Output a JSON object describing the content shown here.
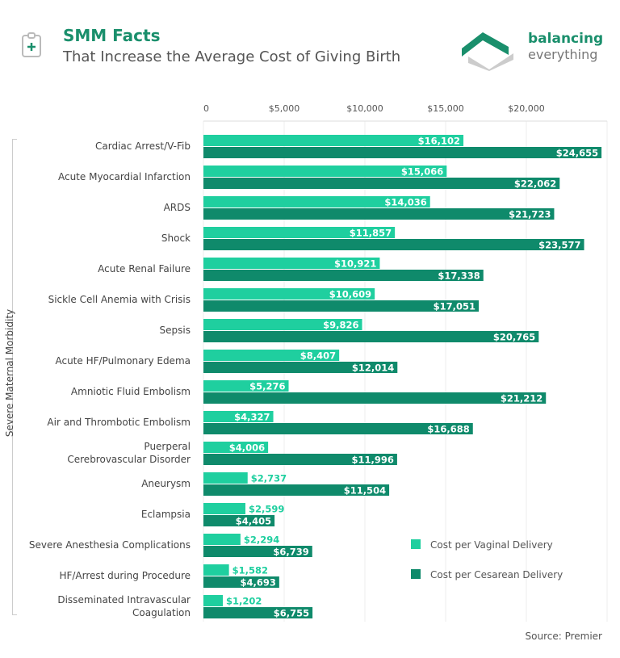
{
  "header": {
    "title": "SMM Facts",
    "subtitle": "That Increase the Average Cost of Giving Birth",
    "logo_line1": "balancing",
    "logo_line2": "everything"
  },
  "source": "Source: Premier",
  "chart_data": {
    "type": "bar",
    "orientation": "horizontal",
    "title": "SMM Facts",
    "subtitle": "That Increase the Average Cost of Giving Birth",
    "ylabel": "Severe Maternal Morbidity",
    "xlabel": "",
    "xlim": [
      0,
      25000
    ],
    "x_ticks": [
      0,
      5000,
      10000,
      15000,
      20000
    ],
    "x_tick_labels": [
      "0",
      "$5,000",
      "$10,000",
      "$15,000",
      "$20,000"
    ],
    "grid": true,
    "legend_position": "bottom-right",
    "categories": [
      "Cardiac Arrest/V-Fib",
      "Acute Myocardial Infarction",
      "ARDS",
      "Shock",
      "Acute Renal Failure",
      "Sickle Cell Anemia with Crisis",
      "Sepsis",
      "Acute HF/Pulmonary Edema",
      "Amniotic Fluid Embolism",
      "Air and Thrombotic Embolism",
      "Puerperal\nCerebrovascular Disorder",
      "Aneurysm",
      "Eclampsia",
      "Severe Anesthesia Complications",
      "HF/Arrest during Procedure",
      "Disseminated Intravascular\nCoagulation"
    ],
    "series": [
      {
        "name": "Cost per Vaginal Delivery",
        "color": "#1fcf9f",
        "values": [
          16102,
          15066,
          14036,
          11857,
          10921,
          10609,
          9826,
          8407,
          5276,
          4327,
          4006,
          2737,
          2599,
          2294,
          1582,
          1202
        ]
      },
      {
        "name": "Cost per Cesarean Delivery",
        "color": "#0f8a6b",
        "values": [
          24655,
          22062,
          21723,
          23577,
          17338,
          17051,
          20765,
          12014,
          21212,
          16688,
          11996,
          11504,
          4405,
          6739,
          4693,
          6755
        ]
      }
    ]
  }
}
